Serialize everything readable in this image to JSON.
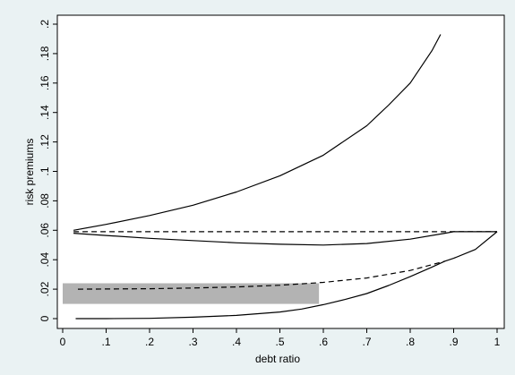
{
  "chart_data": {
    "type": "line",
    "title": "",
    "xlabel": "debt ratio",
    "ylabel": "risk premiums",
    "xlim": [
      0,
      1
    ],
    "ylim": [
      0,
      0.2
    ],
    "x_ticks": [
      "0",
      ".1",
      ".2",
      ".3",
      ".4",
      ".5",
      ".6",
      ".7",
      ".8",
      ".9",
      "1"
    ],
    "y_ticks": [
      "0",
      ".02",
      ".04",
      ".06",
      ".08",
      ".1",
      ".12",
      ".14",
      ".16",
      ".18",
      ".2"
    ],
    "grid": false,
    "legend": "none",
    "colors": {
      "background": "#eaf2f3",
      "plot": "#ffffff",
      "line": "#000000",
      "band": "#b3b3b3"
    },
    "series": [
      {
        "style": "solid",
        "x": [
          0.025,
          0.1,
          0.2,
          0.3,
          0.4,
          0.5,
          0.6,
          0.7,
          0.75,
          0.8,
          0.85,
          0.87
        ],
        "y": [
          0.06,
          0.064,
          0.07,
          0.077,
          0.086,
          0.097,
          0.111,
          0.131,
          0.145,
          0.16,
          0.182,
          0.193
        ]
      },
      {
        "style": "dashed",
        "x": [
          0.025,
          0.9,
          1.0
        ],
        "y": [
          0.059,
          0.059,
          0.059
        ]
      },
      {
        "style": "solid",
        "x": [
          0.025,
          0.1,
          0.2,
          0.3,
          0.4,
          0.5,
          0.6,
          0.7,
          0.8,
          0.88,
          0.9,
          1.0
        ],
        "y": [
          0.058,
          0.0565,
          0.0545,
          0.053,
          0.0515,
          0.0505,
          0.05,
          0.051,
          0.054,
          0.058,
          0.059,
          0.059
        ]
      },
      {
        "style": "dashed",
        "x": [
          0.035,
          0.1,
          0.2,
          0.3,
          0.4,
          0.5,
          0.6,
          0.7,
          0.8,
          0.88
        ],
        "y": [
          0.02,
          0.0201,
          0.0203,
          0.0208,
          0.0215,
          0.0227,
          0.0246,
          0.0276,
          0.0327,
          0.039
        ]
      },
      {
        "style": "solid",
        "x": [
          0.03,
          0.1,
          0.2,
          0.3,
          0.4,
          0.5,
          0.55,
          0.6,
          0.65,
          0.7,
          0.75,
          0.8,
          0.85,
          0.88,
          0.9,
          0.95,
          1.0
        ],
        "y": [
          0.0,
          0.0,
          0.0002,
          0.001,
          0.0022,
          0.0045,
          0.0065,
          0.0095,
          0.013,
          0.017,
          0.0225,
          0.0285,
          0.035,
          0.039,
          0.041,
          0.047,
          0.059
        ]
      }
    ],
    "band": {
      "x": [
        0.0,
        0.59
      ],
      "y": [
        0.01,
        0.024
      ]
    }
  }
}
